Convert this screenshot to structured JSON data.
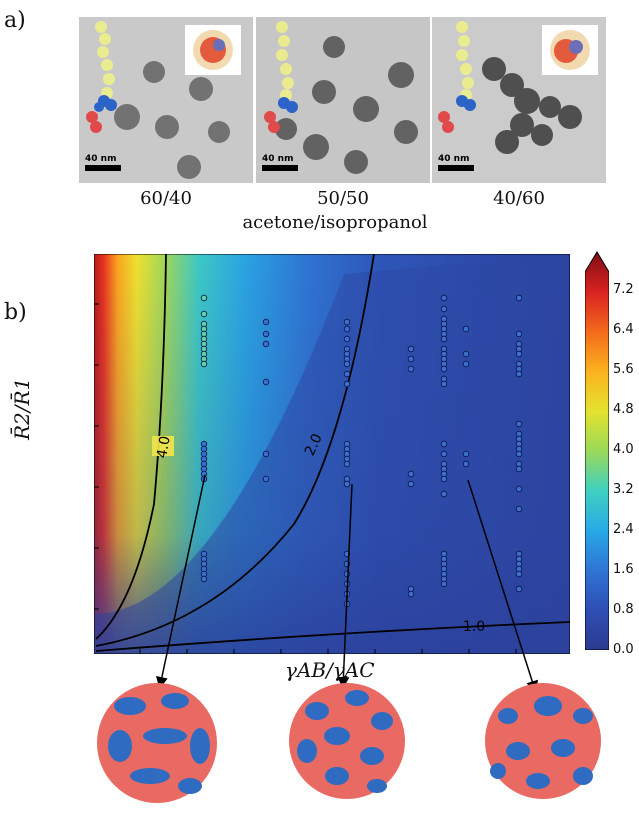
{
  "figure": {
    "panel_a_label": "a)",
    "panel_b_label": "b)",
    "solvent_label": "acetone/isopropanol",
    "tem_images": [
      {
        "ratio": "60/40",
        "scale_bar": "40 nm"
      },
      {
        "ratio": "50/50",
        "scale_bar": "40 nm"
      },
      {
        "ratio": "40/60",
        "scale_bar": "40 nm"
      }
    ]
  },
  "chart_data": {
    "type": "heatmap",
    "xlabel": "γAB/γAC",
    "ylabel": "R̄2/R̄1",
    "colorbar": {
      "ticks": [
        "0.0",
        "0.8",
        "1.6",
        "2.4",
        "3.2",
        "4.0",
        "4.8",
        "5.6",
        "6.4",
        "7.2"
      ],
      "max": 8.0,
      "colors": [
        "#2b3a8f",
        "#2f4fb4",
        "#2f74d4",
        "#28a9e6",
        "#3fd0c0",
        "#9bd95a",
        "#e4e22e",
        "#fbb21e",
        "#f36a1c",
        "#d92221",
        "#7f0d12"
      ]
    },
    "contours": [
      {
        "label": "4.0",
        "level": 4.0
      },
      {
        "label": "2.0",
        "level": 2.0
      },
      {
        "label": "1.0",
        "level": 1.0
      }
    ],
    "grid": false
  }
}
